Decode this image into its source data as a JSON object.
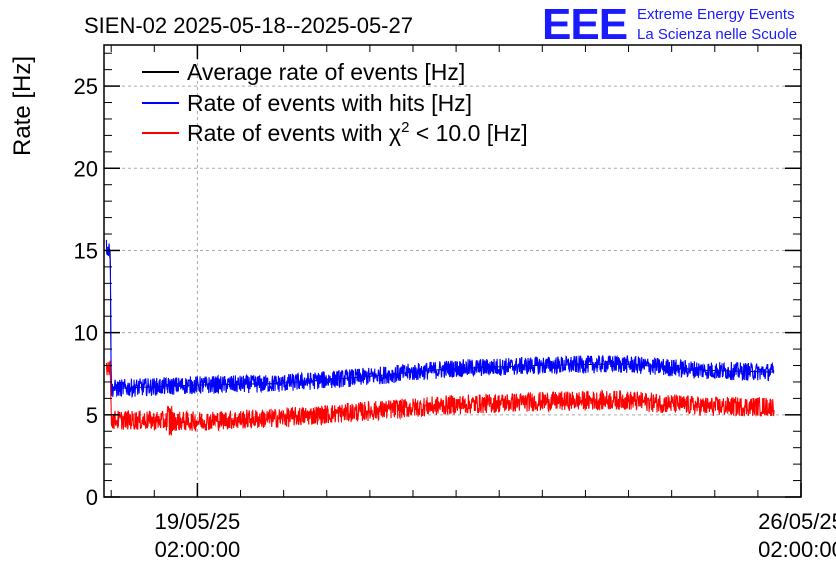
{
  "chart_data": {
    "type": "line",
    "title": "SIEN-02 2025-05-18--2025-05-27",
    "ylabel": "Rate [Hz]",
    "ylim": [
      0,
      27.5
    ],
    "yticks": [
      "0",
      "5",
      "10",
      "15",
      "20",
      "25"
    ],
    "xlim": [
      "2025-05-18T00:00",
      "2025-05-26T02:00"
    ],
    "x_ticks": [
      {
        "date": "19/05/25",
        "time": "02:00:00"
      },
      {
        "date": "26/05/25",
        "time": "02:00:00"
      }
    ],
    "grid": true,
    "legend_position": "top-left",
    "series": [
      {
        "name": "Average rate of events [Hz]",
        "color": "#000000",
        "x": [
          "2025-05-18T00:40",
          "2025-05-18T01:45",
          "2025-05-18T02:00",
          "2025-05-19T00:00",
          "2025-05-20T00:00",
          "2025-05-21T00:00",
          "2025-05-22T00:00",
          "2025-05-23T00:00",
          "2025-05-24T00:00",
          "2025-05-25T00:00",
          "2025-05-25T18:30"
        ],
        "values": [
          15.2,
          15.0,
          6.6,
          6.8,
          6.9,
          7.3,
          7.8,
          8.0,
          8.1,
          7.7,
          7.6
        ]
      },
      {
        "name": "Rate of events with hits [Hz]",
        "color": "#0000ff",
        "x": [
          "2025-05-18T00:40",
          "2025-05-18T01:45",
          "2025-05-18T02:00",
          "2025-05-19T00:00",
          "2025-05-20T00:00",
          "2025-05-21T00:00",
          "2025-05-22T00:00",
          "2025-05-23T00:00",
          "2025-05-24T00:00",
          "2025-05-25T00:00",
          "2025-05-25T18:30"
        ],
        "values": [
          15.2,
          15.0,
          6.6,
          6.8,
          6.9,
          7.3,
          7.8,
          8.0,
          8.1,
          7.7,
          7.6
        ]
      },
      {
        "name": "Rate of events with χ² < 10.0 [Hz]",
        "legend_prefix": "Rate of events with χ",
        "legend_sup": "2",
        "legend_suffix": " < 10.0 [Hz]",
        "color": "#ff0000",
        "x": [
          "2025-05-18T00:40",
          "2025-05-18T01:45",
          "2025-05-18T02:00",
          "2025-05-19T00:00",
          "2025-05-20T00:00",
          "2025-05-21T00:00",
          "2025-05-22T00:00",
          "2025-05-23T00:00",
          "2025-05-24T00:00",
          "2025-05-25T00:00",
          "2025-05-25T18:30"
        ],
        "values": [
          8.0,
          8.0,
          4.7,
          4.6,
          4.8,
          5.2,
          5.6,
          5.8,
          5.9,
          5.5,
          5.5
        ]
      }
    ]
  },
  "logo": {
    "mark": "EEE",
    "line1": "Extreme Energy Events",
    "line2": "La Scienza nelle Scuole"
  }
}
